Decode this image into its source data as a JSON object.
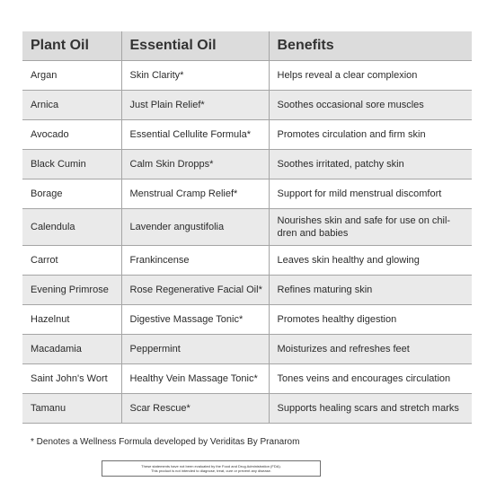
{
  "table": {
    "headers": [
      "Plant Oil",
      "Essential Oil",
      "Benefits"
    ],
    "rows": [
      {
        "plant_oil": "Argan",
        "essential_oil": "Skin Clarity*",
        "benefits": "Helps reveal a clear complexion"
      },
      {
        "plant_oil": "Arnica",
        "essential_oil": "Just Plain Relief*",
        "benefits": "Soothes occasional sore muscles"
      },
      {
        "plant_oil": "Avocado",
        "essential_oil": "Essential Cellulite Formula*",
        "benefits": "Promotes circulation and firm skin"
      },
      {
        "plant_oil": "Black Cumin",
        "essential_oil": "Calm Skin Dropps*",
        "benefits": "Soothes irritated, patchy skin"
      },
      {
        "plant_oil": "Borage",
        "essential_oil": "Menstrual Cramp Relief*",
        "benefits": "Support for mild menstrual discomfort"
      },
      {
        "plant_oil": "Calendula",
        "essential_oil": "Lavender angustifolia",
        "benefits": "Nourishes skin and safe for use on chil-dren and babies"
      },
      {
        "plant_oil": "Carrot",
        "essential_oil": "Frankincense",
        "benefits": "Leaves skin healthy and glowing"
      },
      {
        "plant_oil": "Evening Primrose",
        "essential_oil": "Rose Regenerative Facial Oil*",
        "benefits": "Refines maturing skin"
      },
      {
        "plant_oil": "Hazelnut",
        "essential_oil": "Digestive Massage Tonic*",
        "benefits": "Promotes healthy digestion"
      },
      {
        "plant_oil": "Macadamia",
        "essential_oil": "Peppermint",
        "benefits": "Moisturizes and refreshes feet"
      },
      {
        "plant_oil": "Saint John's Wort",
        "essential_oil": "Healthy Vein Massage Tonic*",
        "benefits": "Tones veins and encourages circulation"
      },
      {
        "plant_oil": "Tamanu",
        "essential_oil": "Scar Rescue*",
        "benefits": "Supports healing scars and stretch marks"
      }
    ]
  },
  "footnote": "* Denotes a Wellness Formula developed by Veriditas By Pranarom",
  "disclaimer": {
    "line1": "These statements have not been evaluated by the Food and Drug Administration (FDA).",
    "line2": "This product is not intended to diagnose, treat, cure or prevent any disease."
  }
}
